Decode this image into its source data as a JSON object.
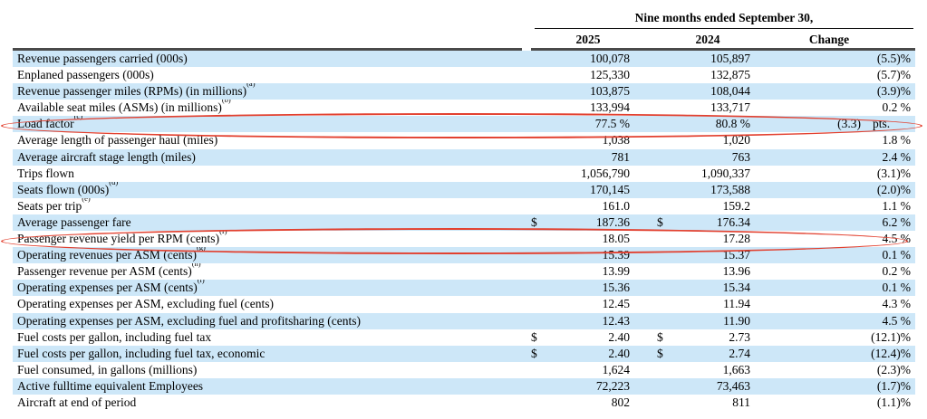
{
  "document": {
    "period_header": "Nine months ended September 30,",
    "currency_symbol": "$",
    "columns": {
      "y2025": "2025",
      "y2024": "2024",
      "change": "Change"
    },
    "colors": {
      "stripe_blue": "#cde7f8",
      "heavy_rule": "#4a4a4a",
      "annotation_red": "#e2402f"
    },
    "annotations": {
      "shape": "red-oval",
      "circled_rows": [
        "Load factor",
        "Passenger revenue yield per RPM (cents)"
      ]
    },
    "rows": [
      {
        "label": "Revenue passengers carried (000s)",
        "sup": "",
        "dollar": false,
        "y2025": "100,078",
        "y2024": "105,897",
        "change": "(5.5)%",
        "suffix": ""
      },
      {
        "label": "Enplaned passengers (000s)",
        "sup": "",
        "dollar": false,
        "y2025": "125,330",
        "y2024": "132,875",
        "change": "(5.7)%",
        "suffix": ""
      },
      {
        "label": "Revenue passenger miles (RPMs) (in millions)",
        "sup": "(a)",
        "dollar": false,
        "y2025": "103,875",
        "y2024": "108,044",
        "change": "(3.9)%",
        "suffix": ""
      },
      {
        "label": "Available seat miles (ASMs) (in millions)",
        "sup": "(b)",
        "dollar": false,
        "y2025": "133,994",
        "y2024": "133,717",
        "change": "0.2 %",
        "suffix": ""
      },
      {
        "label": "Load factor",
        "sup": "(c)",
        "dollar": false,
        "y2025": "77.5 %",
        "y2024": "80.8 %",
        "change": "(3.3)",
        "suffix": "pts."
      },
      {
        "label": "Average length of passenger haul (miles)",
        "sup": "",
        "dollar": false,
        "y2025": "1,038",
        "y2024": "1,020",
        "change": "1.8 %",
        "suffix": ""
      },
      {
        "label": "Average aircraft stage length (miles)",
        "sup": "",
        "dollar": false,
        "y2025": "781",
        "y2024": "763",
        "change": "2.4 %",
        "suffix": ""
      },
      {
        "label": "Trips flown",
        "sup": "",
        "dollar": false,
        "y2025": "1,056,790",
        "y2024": "1,090,337",
        "change": "(3.1)%",
        "suffix": ""
      },
      {
        "label": "Seats flown (000s)",
        "sup": "(d)",
        "dollar": false,
        "y2025": "170,145",
        "y2024": "173,588",
        "change": "(2.0)%",
        "suffix": ""
      },
      {
        "label": "Seats per trip",
        "sup": "(e)",
        "dollar": false,
        "y2025": "161.0",
        "y2024": "159.2",
        "change": "1.1 %",
        "suffix": ""
      },
      {
        "label": "Average passenger fare",
        "sup": "",
        "dollar": true,
        "y2025": "187.36",
        "y2024": "176.34",
        "change": "6.2 %",
        "suffix": ""
      },
      {
        "label": "Passenger revenue yield per RPM (cents)",
        "sup": "(f)",
        "dollar": false,
        "y2025": "18.05",
        "y2024": "17.28",
        "change": "4.5 %",
        "suffix": ""
      },
      {
        "label": "Operating revenues per ASM (cents)",
        "sup": "(g)",
        "dollar": false,
        "y2025": "15.39",
        "y2024": "15.37",
        "change": "0.1 %",
        "suffix": ""
      },
      {
        "label": "Passenger revenue per ASM (cents)",
        "sup": "(h)",
        "dollar": false,
        "y2025": "13.99",
        "y2024": "13.96",
        "change": "0.2 %",
        "suffix": ""
      },
      {
        "label": "Operating expenses per ASM (cents)",
        "sup": "(i)",
        "dollar": false,
        "y2025": "15.36",
        "y2024": "15.34",
        "change": "0.1 %",
        "suffix": ""
      },
      {
        "label": "Operating expenses per ASM, excluding fuel (cents)",
        "sup": "",
        "dollar": false,
        "y2025": "12.45",
        "y2024": "11.94",
        "change": "4.3 %",
        "suffix": ""
      },
      {
        "label": "Operating expenses per ASM, excluding fuel and profitsharing (cents)",
        "sup": "",
        "dollar": false,
        "y2025": "12.43",
        "y2024": "11.90",
        "change": "4.5 %",
        "suffix": ""
      },
      {
        "label": "Fuel costs per gallon, including fuel tax",
        "sup": "",
        "dollar": true,
        "y2025": "2.40",
        "y2024": "2.73",
        "change": "(12.1)%",
        "suffix": ""
      },
      {
        "label": "Fuel costs per gallon, including fuel tax, economic",
        "sup": "",
        "dollar": true,
        "y2025": "2.40",
        "y2024": "2.74",
        "change": "(12.4)%",
        "suffix": ""
      },
      {
        "label": "Fuel consumed, in gallons (millions)",
        "sup": "",
        "dollar": false,
        "y2025": "1,624",
        "y2024": "1,663",
        "change": "(2.3)%",
        "suffix": ""
      },
      {
        "label": "Active fulltime equivalent Employees",
        "sup": "",
        "dollar": false,
        "y2025": "72,223",
        "y2024": "73,463",
        "change": "(1.7)%",
        "suffix": ""
      },
      {
        "label": "Aircraft at end of period",
        "sup": "",
        "dollar": false,
        "y2025": "802",
        "y2024": "811",
        "change": "(1.1)%",
        "suffix": ""
      }
    ]
  }
}
